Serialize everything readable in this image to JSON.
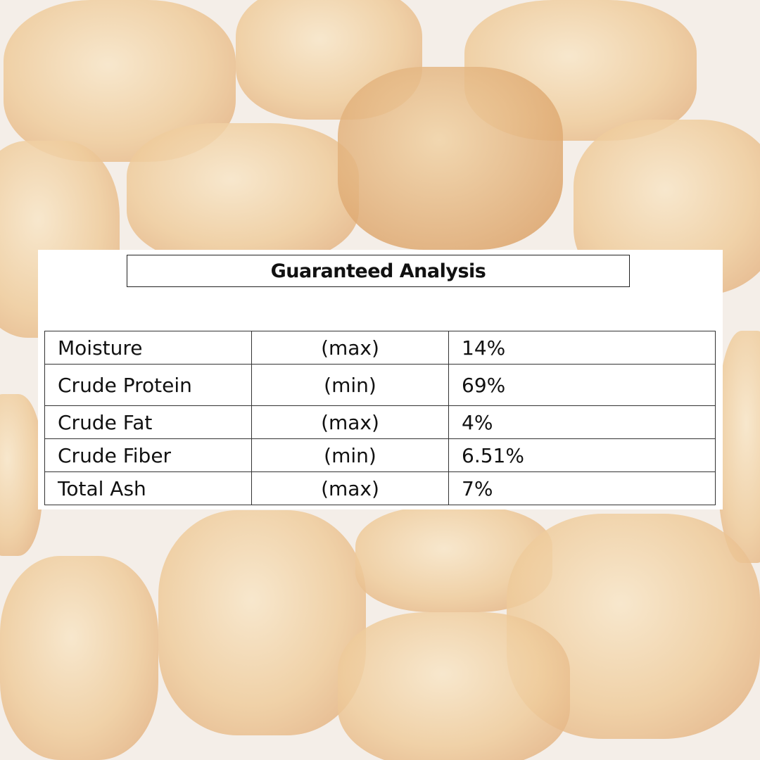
{
  "title": "Guaranteed Analysis",
  "rows": [
    {
      "nutrient": "Moisture",
      "qualifier": "(max)",
      "value": "14%"
    },
    {
      "nutrient": "Crude Protein",
      "qualifier": "(min)",
      "value": "69%"
    },
    {
      "nutrient": "Crude Fat",
      "qualifier": "(max)",
      "value": "4%"
    },
    {
      "nutrient": "Crude Fiber",
      "qualifier": "(min)",
      "value": "6.51%"
    },
    {
      "nutrient": "Total Ash",
      "qualifier": "(max)",
      "value": "7%"
    }
  ]
}
